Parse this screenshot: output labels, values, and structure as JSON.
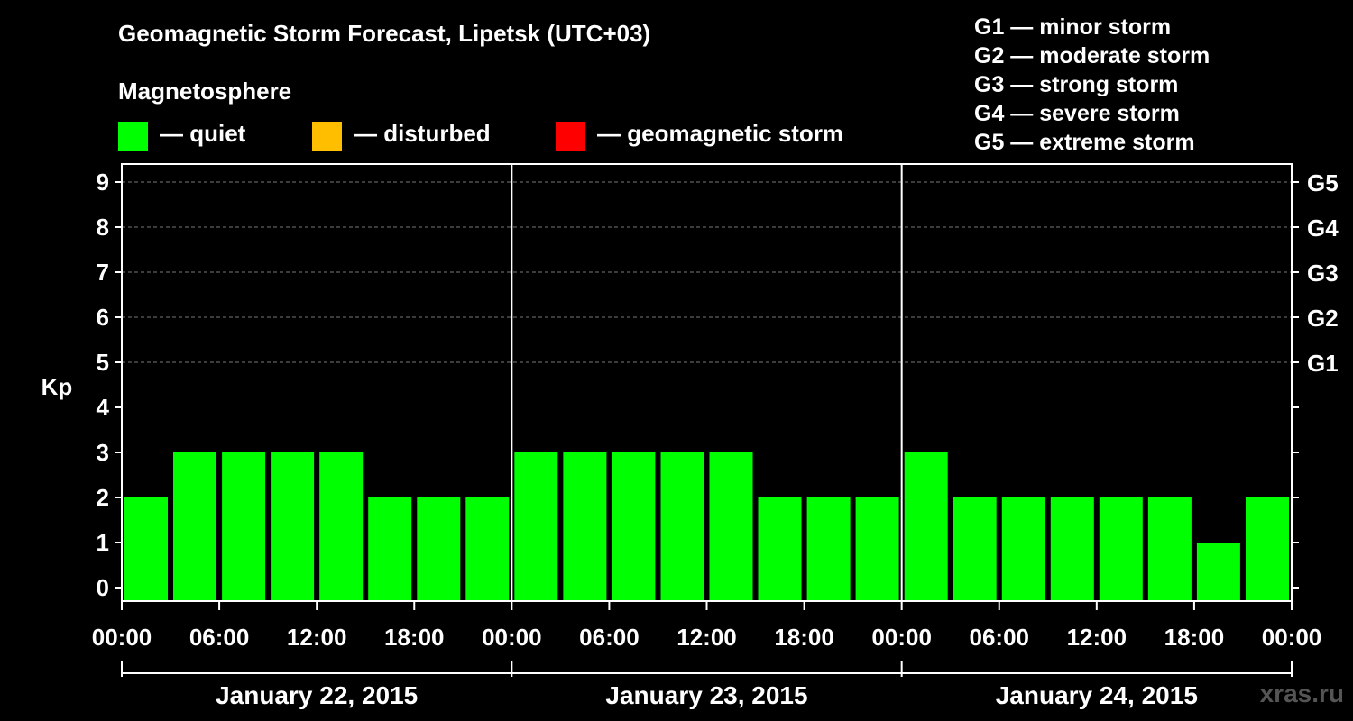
{
  "header": {
    "title": "Geomagnetic Storm Forecast, Lipetsk (UTC+03)",
    "subtitle": "Magnetosphere"
  },
  "legend": {
    "items": [
      {
        "label": "— quiet",
        "color": "#00ff00"
      },
      {
        "label": "— disturbed",
        "color": "#ffbf00"
      },
      {
        "label": "— geomagnetic storm",
        "color": "#ff0000"
      }
    ],
    "storm_levels": [
      "G1 — minor storm",
      "G2 — moderate storm",
      "G3 — strong storm",
      "G4 — severe storm",
      "G5 — extreme storm"
    ]
  },
  "watermark": "xras.ru",
  "chart_data": {
    "type": "bar",
    "ylabel": "Kp",
    "ylim": [
      0,
      9
    ],
    "yticks": [
      "0",
      "1",
      "2",
      "3",
      "4",
      "5",
      "6",
      "7",
      "8",
      "9"
    ],
    "right_ticks": [
      {
        "value": 5,
        "label": "G1"
      },
      {
        "value": 6,
        "label": "G2"
      },
      {
        "value": 7,
        "label": "G3"
      },
      {
        "value": 8,
        "label": "G4"
      },
      {
        "value": 9,
        "label": "G5"
      }
    ],
    "grid": "dashed at Kp 5–9",
    "days": [
      "January 22, 2015",
      "January 23, 2015",
      "January 24, 2015"
    ],
    "xtick_labels": [
      "00:00",
      "06:00",
      "12:00",
      "18:00",
      "00:00",
      "06:00",
      "12:00",
      "18:00",
      "00:00",
      "06:00",
      "12:00",
      "18:00",
      "00:00"
    ],
    "values": [
      2,
      3,
      3,
      3,
      3,
      2,
      2,
      2,
      3,
      3,
      3,
      3,
      3,
      2,
      2,
      2,
      3,
      2,
      2,
      2,
      2,
      2,
      1,
      2
    ],
    "bar_color": "#00ff00"
  }
}
